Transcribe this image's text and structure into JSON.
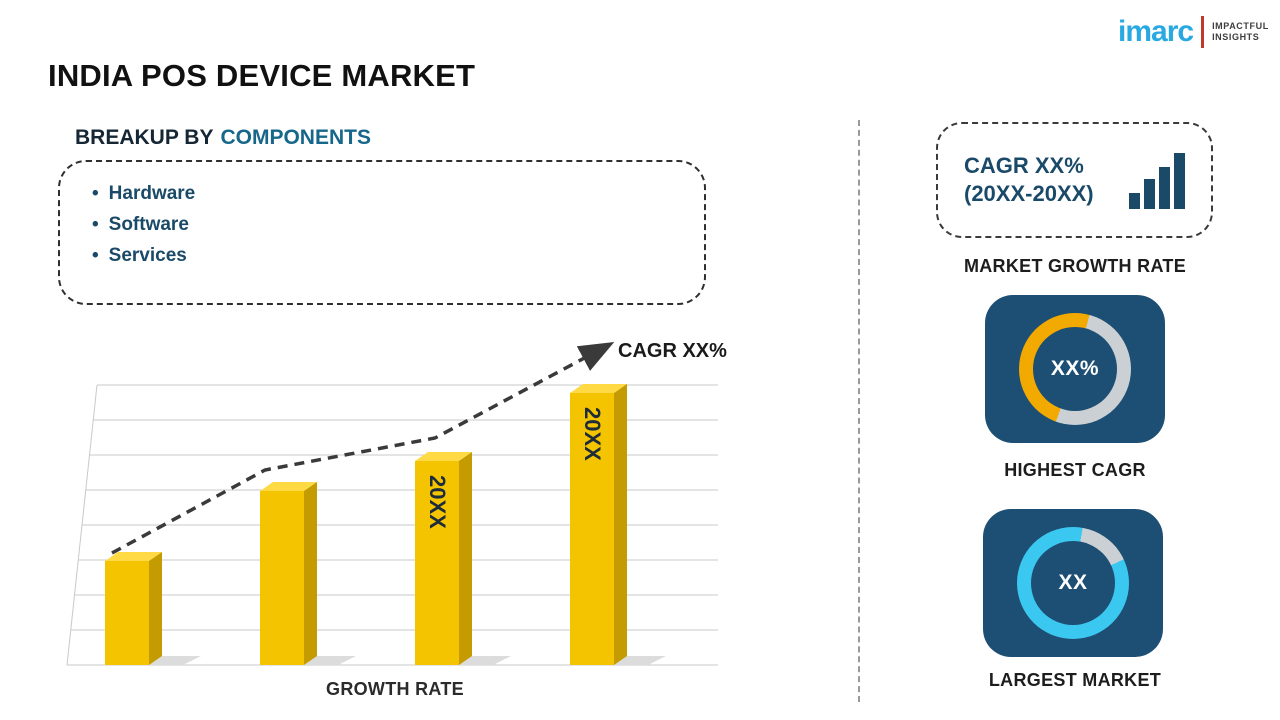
{
  "page": {
    "title": "INDIA POS DEVICE MARKET"
  },
  "logo": {
    "brand": "imarc",
    "tagline1": "IMPACTFUL",
    "tagline2": "INSIGHTS"
  },
  "breakup": {
    "prefix": "BREAKUP BY",
    "highlight": "COMPONENTS",
    "items": [
      "Hardware",
      "Software",
      "Services"
    ]
  },
  "chart_data": {
    "type": "bar",
    "categories": [
      "",
      "",
      "20XX",
      "20XX"
    ],
    "values": [
      37,
      62,
      73,
      97
    ],
    "bar_labels": [
      "",
      "",
      "20XX",
      "20XX"
    ],
    "title": "",
    "xlabel": "GROWTH RATE",
    "ylabel": "",
    "ylim": [
      0,
      100
    ],
    "annotation": "CAGR XX%",
    "trend": "dashed-arrow-up",
    "bar_color": "#F5C400",
    "note": "No numeric axis shown; values are relative bar heights estimated from gridlines"
  },
  "right": {
    "cagr_box": {
      "line1": "CAGR XX%",
      "line2": "(20XX-20XX)"
    },
    "market_growth_label": "MARKET GROWTH RATE",
    "highest_cagr": {
      "value": "XX%",
      "label": "HIGHEST CAGR",
      "accent": "#F2A900"
    },
    "largest_market": {
      "value": "XX",
      "label": "LARGEST MARKET",
      "accent": "#3BC8F0"
    }
  },
  "colors": {
    "navy_tile": "#1d4e74",
    "gold": "#F5C400",
    "cyan": "#3BC8F0",
    "ring_gray": "#CBD0D4",
    "dark_navy_text": "#1B4A68",
    "teal_heading": "#17678A",
    "brand_blue": "#29A9E1"
  }
}
